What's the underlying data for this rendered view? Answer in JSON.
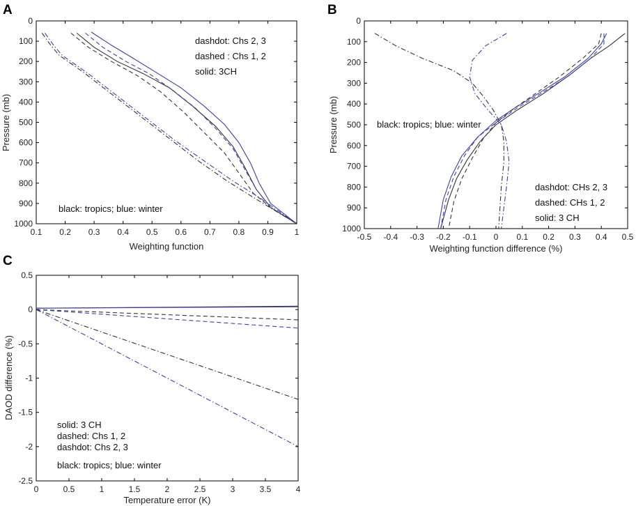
{
  "colors": {
    "tropics": "#333333",
    "winter": "#3a3fa8"
  },
  "chart_data": [
    {
      "panel": "A",
      "type": "line",
      "xlabel": "Weighting function",
      "ylabel": "Pressure (mb)",
      "xlim": [
        0.1,
        1
      ],
      "ylim": [
        0,
        1000
      ],
      "y_reversed": true,
      "xticks": [
        0.1,
        0.2,
        0.3,
        0.4,
        0.5,
        0.6,
        0.7,
        0.8,
        0.9,
        1
      ],
      "xtick_labels": [
        "0.1",
        "0.2",
        "0.3",
        "0.4",
        "0.5",
        "0.6",
        "0.7",
        "0.8",
        "0.9",
        "1"
      ],
      "yticks": [
        0,
        100,
        200,
        300,
        400,
        500,
        600,
        700,
        800,
        900,
        1000
      ],
      "ytick_labels": [
        "0",
        "100",
        "200",
        "300",
        "400",
        "500",
        "600",
        "700",
        "800",
        "900",
        "1000"
      ],
      "annotations": [
        "dashdot: Chs 2, 3",
        "dashed : Chs 1, 2",
        "solid: 3CH",
        "black: tropics; blue: winter"
      ],
      "series": [
        {
          "name": "solid tropics",
          "style": "solid",
          "color": "tropics",
          "points": [
            [
              0.24,
              60
            ],
            [
              0.3,
              130
            ],
            [
              0.38,
              200
            ],
            [
              0.47,
              260
            ],
            [
              0.56,
              330
            ],
            [
              0.64,
              420
            ],
            [
              0.72,
              520
            ],
            [
              0.78,
              620
            ],
            [
              0.82,
              720
            ],
            [
              0.86,
              830
            ],
            [
              0.91,
              920
            ],
            [
              1.0,
              1000
            ]
          ]
        },
        {
          "name": "solid winter",
          "style": "solid",
          "color": "winter",
          "points": [
            [
              0.29,
              55
            ],
            [
              0.36,
              120
            ],
            [
              0.43,
              180
            ],
            [
              0.51,
              250
            ],
            [
              0.6,
              330
            ],
            [
              0.68,
              420
            ],
            [
              0.75,
              510
            ],
            [
              0.8,
              600
            ],
            [
              0.84,
              700
            ],
            [
              0.87,
              800
            ],
            [
              0.91,
              900
            ],
            [
              1.0,
              1000
            ]
          ]
        },
        {
          "name": "dashed tropics",
          "style": "dashed",
          "color": "tropics",
          "points": [
            [
              0.22,
              60
            ],
            [
              0.28,
              130
            ],
            [
              0.36,
              200
            ],
            [
              0.45,
              270
            ],
            [
              0.53,
              350
            ],
            [
              0.61,
              450
            ],
            [
              0.68,
              550
            ],
            [
              0.75,
              650
            ],
            [
              0.8,
              750
            ],
            [
              0.85,
              850
            ],
            [
              0.91,
              920
            ],
            [
              1.0,
              1000
            ]
          ]
        },
        {
          "name": "dashed winter",
          "style": "dashed",
          "color": "winter",
          "points": [
            [
              0.27,
              60
            ],
            [
              0.33,
              130
            ],
            [
              0.41,
              200
            ],
            [
              0.49,
              260
            ],
            [
              0.57,
              340
            ],
            [
              0.65,
              430
            ],
            [
              0.72,
              530
            ],
            [
              0.78,
              630
            ],
            [
              0.82,
              730
            ],
            [
              0.86,
              830
            ],
            [
              0.91,
              920
            ],
            [
              1.0,
              1000
            ]
          ]
        },
        {
          "name": "dashdot tropics",
          "style": "dashdot",
          "color": "tropics",
          "points": [
            [
              0.12,
              60
            ],
            [
              0.15,
              120
            ],
            [
              0.18,
              170
            ],
            [
              0.26,
              250
            ],
            [
              0.36,
              360
            ],
            [
              0.46,
              470
            ],
            [
              0.56,
              580
            ],
            [
              0.66,
              690
            ],
            [
              0.76,
              790
            ],
            [
              0.85,
              870
            ],
            [
              0.93,
              940
            ],
            [
              1.0,
              1000
            ]
          ]
        },
        {
          "name": "dashdot winter",
          "style": "dashdot",
          "color": "winter",
          "points": [
            [
              0.13,
              60
            ],
            [
              0.16,
              120
            ],
            [
              0.19,
              170
            ],
            [
              0.28,
              260
            ],
            [
              0.38,
              370
            ],
            [
              0.48,
              480
            ],
            [
              0.58,
              590
            ],
            [
              0.68,
              690
            ],
            [
              0.78,
              790
            ],
            [
              0.87,
              870
            ],
            [
              0.94,
              940
            ],
            [
              1.0,
              1000
            ]
          ]
        }
      ]
    },
    {
      "panel": "B",
      "type": "line",
      "xlabel": "Weighting function difference (%)",
      "ylabel": "Pressure (mb)",
      "xlim": [
        -0.5,
        0.5
      ],
      "ylim": [
        0,
        1000
      ],
      "y_reversed": true,
      "xticks": [
        -0.5,
        -0.4,
        -0.3,
        -0.2,
        -0.1,
        0,
        0.1,
        0.2,
        0.3,
        0.4,
        0.5
      ],
      "xtick_labels": [
        "-0.5",
        "-0.4",
        "-0.3",
        "-0.2",
        "-0.1",
        "0",
        "0.1",
        "0.2",
        "0.3",
        "0.4",
        "0.5"
      ],
      "yticks": [
        0,
        100,
        200,
        300,
        400,
        500,
        600,
        700,
        800,
        900,
        1000
      ],
      "ytick_labels": [
        "0",
        "100",
        "200",
        "300",
        "400",
        "500",
        "600",
        "700",
        "800",
        "900",
        "1000"
      ],
      "annotations": [
        "black: tropics;  blue: winter",
        "dashdot: CHs 2, 3",
        "dashed: CHs 1, 2",
        "solid: 3 CH"
      ],
      "series": [
        {
          "name": "solid tropics",
          "style": "solid",
          "color": "tropics",
          "points": [
            [
              0.49,
              60
            ],
            [
              0.43,
              120
            ],
            [
              0.36,
              180
            ],
            [
              0.28,
              260
            ],
            [
              0.18,
              350
            ],
            [
              0.08,
              430
            ],
            [
              0.0,
              500
            ],
            [
              -0.06,
              580
            ],
            [
              -0.11,
              670
            ],
            [
              -0.15,
              760
            ],
            [
              -0.18,
              860
            ],
            [
              -0.21,
              1000
            ]
          ]
        },
        {
          "name": "solid winter",
          "style": "solid",
          "color": "winter",
          "points": [
            [
              0.42,
              60
            ],
            [
              0.4,
              110
            ],
            [
              0.35,
              180
            ],
            [
              0.26,
              270
            ],
            [
              0.16,
              350
            ],
            [
              0.07,
              420
            ],
            [
              0.0,
              480
            ],
            [
              -0.07,
              560
            ],
            [
              -0.13,
              650
            ],
            [
              -0.17,
              750
            ],
            [
              -0.2,
              860
            ],
            [
              -0.22,
              1000
            ]
          ]
        },
        {
          "name": "dashed tropics",
          "style": "dashed",
          "color": "tropics",
          "points": [
            [
              0.4,
              60
            ],
            [
              0.39,
              110
            ],
            [
              0.33,
              180
            ],
            [
              0.24,
              270
            ],
            [
              0.15,
              350
            ],
            [
              0.07,
              420
            ],
            [
              0.0,
              490
            ],
            [
              -0.05,
              570
            ],
            [
              -0.09,
              660
            ],
            [
              -0.13,
              760
            ],
            [
              -0.16,
              870
            ],
            [
              -0.18,
              1000
            ]
          ]
        },
        {
          "name": "dashed winter",
          "style": "dashed",
          "color": "winter",
          "points": [
            [
              0.41,
              60
            ],
            [
              0.41,
              110
            ],
            [
              0.36,
              180
            ],
            [
              0.27,
              270
            ],
            [
              0.17,
              350
            ],
            [
              0.08,
              420
            ],
            [
              0.0,
              490
            ],
            [
              -0.07,
              560
            ],
            [
              -0.12,
              650
            ],
            [
              -0.16,
              750
            ],
            [
              -0.19,
              860
            ],
            [
              -0.21,
              1000
            ]
          ]
        },
        {
          "name": "dashdot tropics",
          "style": "dashdot",
          "color": "tropics",
          "points": [
            [
              -0.46,
              60
            ],
            [
              -0.38,
              120
            ],
            [
              -0.28,
              180
            ],
            [
              -0.16,
              240
            ],
            [
              -0.09,
              300
            ],
            [
              -0.05,
              360
            ],
            [
              -0.01,
              430
            ],
            [
              0.02,
              500
            ],
            [
              0.03,
              580
            ],
            [
              0.03,
              680
            ],
            [
              0.02,
              800
            ],
            [
              0.01,
              1000
            ]
          ]
        },
        {
          "name": "dashdot winter",
          "style": "dashdot",
          "color": "winter",
          "points": [
            [
              0.04,
              60
            ],
            [
              -0.04,
              120
            ],
            [
              -0.09,
              190
            ],
            [
              -0.1,
              270
            ],
            [
              -0.08,
              350
            ],
            [
              -0.03,
              430
            ],
            [
              0.02,
              500
            ],
            [
              0.04,
              580
            ],
            [
              0.05,
              680
            ],
            [
              0.04,
              800
            ],
            [
              0.03,
              900
            ],
            [
              0.02,
              1000
            ]
          ]
        }
      ]
    },
    {
      "panel": "C",
      "type": "line",
      "xlabel": "Temperature error (K)",
      "ylabel": "DAOD difference (%)",
      "xlim": [
        0,
        4
      ],
      "ylim": [
        -2.5,
        0.5
      ],
      "y_reversed": false,
      "xticks": [
        0,
        0.5,
        1,
        1.5,
        2,
        2.5,
        3,
        3.5,
        4
      ],
      "xtick_labels": [
        "0",
        "0.5",
        "1",
        "1.5",
        "2",
        "2.5",
        "3",
        "3.5",
        "4"
      ],
      "yticks": [
        0.5,
        0,
        -0.5,
        -1,
        -1.5,
        -2,
        -2.5
      ],
      "ytick_labels": [
        "0.5",
        "0",
        "-0.5",
        "-1",
        "-1.5",
        "-2",
        "-2.5"
      ],
      "annotations": [
        "solid: 3 CH",
        "dashed: Chs 1, 2",
        "dashdot: Chs 2, 3",
        "black: tropics; blue: winter"
      ],
      "series": [
        {
          "name": "solid tropics",
          "style": "solid",
          "color": "tropics",
          "points": [
            [
              0,
              0.02
            ],
            [
              4,
              0.05
            ]
          ]
        },
        {
          "name": "solid winter",
          "style": "solid",
          "color": "winter",
          "points": [
            [
              0,
              0.02
            ],
            [
              4,
              0.04
            ]
          ]
        },
        {
          "name": "dashed tropics",
          "style": "dashed",
          "color": "tropics",
          "points": [
            [
              0,
              0.0
            ],
            [
              4,
              -0.15
            ]
          ]
        },
        {
          "name": "dashed winter",
          "style": "dashed",
          "color": "winter",
          "points": [
            [
              0,
              0.0
            ],
            [
              4,
              -0.27
            ]
          ]
        },
        {
          "name": "dashdot tropics",
          "style": "dashdot",
          "color": "tropics",
          "points": [
            [
              0,
              0.0
            ],
            [
              4,
              -1.31
            ]
          ]
        },
        {
          "name": "dashdot winter",
          "style": "dashdot",
          "color": "winter",
          "points": [
            [
              0,
              0.0
            ],
            [
              4,
              -2.0
            ]
          ]
        }
      ]
    }
  ]
}
